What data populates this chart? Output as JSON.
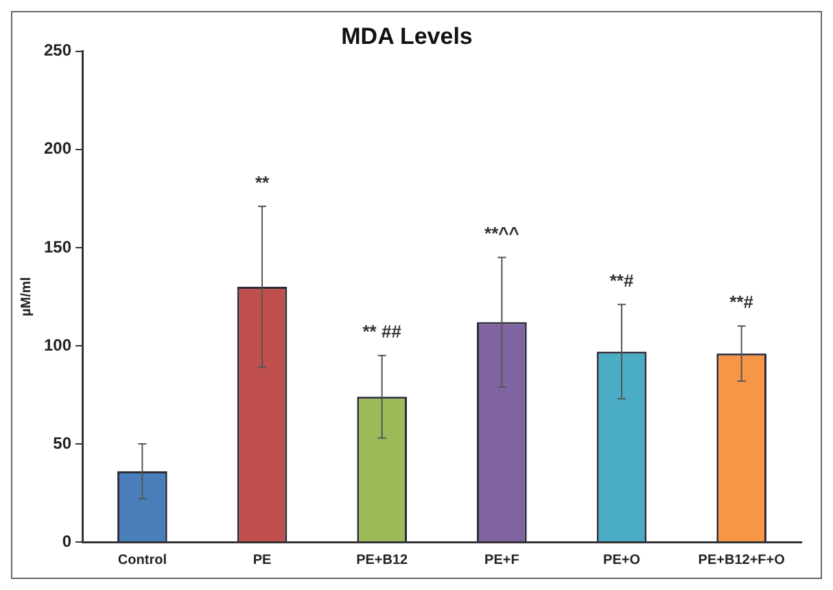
{
  "chart_data": {
    "type": "bar",
    "title": "MDA Levels",
    "ylabel": "µM/ml",
    "categories": [
      "Control",
      "PE",
      "PE+B12",
      "PE+F",
      "PE+O",
      "PE+B12+F+O"
    ],
    "values": [
      36,
      130,
      74,
      112,
      97,
      96
    ],
    "errors": [
      14,
      41,
      21,
      33,
      24,
      14
    ],
    "colors": [
      "#4a7ebb",
      "#c0504d",
      "#9bbb59",
      "#8064a2",
      "#4bacc6",
      "#f79646"
    ],
    "ylim": [
      0,
      250
    ],
    "yticks": [
      0,
      50,
      100,
      150,
      200,
      250
    ],
    "grid": false,
    "legend": false,
    "annotations": [
      {
        "text": "**",
        "x": "PE",
        "y": 171
      },
      {
        "text": "** ##",
        "x": "PE+B12",
        "y": 95
      },
      {
        "text": "**^^",
        "x": "PE+F",
        "y": 145
      },
      {
        "text": "**#",
        "x": "PE+O",
        "y": 121
      },
      {
        "text": "**#",
        "x": "PE+B12+F+O",
        "y": 110
      }
    ]
  }
}
